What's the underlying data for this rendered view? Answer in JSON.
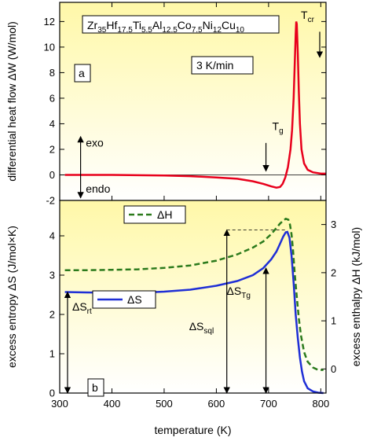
{
  "chart_data": [
    {
      "panel": "a",
      "type": "line",
      "panel_label": "a",
      "title": "Zr35Hf17.5Ti5.5Al12.5Co7.5Ni12Cu10",
      "title_parts": [
        {
          "t": "Zr",
          "sub": "35"
        },
        {
          "t": "Hf",
          "sub": "17.5"
        },
        {
          "t": "Ti",
          "sub": "5.5"
        },
        {
          "t": "Al",
          "sub": "12.5"
        },
        {
          "t": "Co",
          "sub": "7.5"
        },
        {
          "t": "Ni",
          "sub": "12"
        },
        {
          "t": "Cu",
          "sub": "10"
        }
      ],
      "rate_label": "3 K/min",
      "ylabel": "differential heat flow ΔW (W/mol)",
      "xlim": [
        300,
        810
      ],
      "ylim": [
        -2,
        13.5
      ],
      "yticks": [
        -2,
        0,
        2,
        4,
        6,
        8,
        10,
        12
      ],
      "series": [
        {
          "color": "#e8001c",
          "x": [
            310,
            400,
            500,
            550,
            600,
            640,
            670,
            690,
            705,
            715,
            722,
            727,
            732,
            737,
            742,
            745,
            748,
            750,
            752,
            753,
            754,
            756,
            758,
            760,
            763,
            768,
            775,
            785,
            800,
            810
          ],
          "y": [
            0,
            0,
            -0.05,
            -0.1,
            -0.2,
            -0.3,
            -0.5,
            -0.7,
            -0.9,
            -1.0,
            -0.95,
            -0.7,
            -0.2,
            0.6,
            2.0,
            3.5,
            6.0,
            8.5,
            11.0,
            12.0,
            11.8,
            9.5,
            6.5,
            4.0,
            2.0,
            0.9,
            0.4,
            0.2,
            0.1,
            0.1
          ]
        }
      ],
      "annotations": {
        "tg_label": "T",
        "tg_sub": "g",
        "tg_x": 695,
        "tcr_label": "T",
        "tcr_sub": "cr",
        "tcr_x": 798,
        "exo": "exo",
        "endo": "endo"
      }
    },
    {
      "panel": "b",
      "type": "line",
      "panel_label": "b",
      "xlabel": "temperature (K)",
      "ylabel": "excess entropy ΔS (J/mol×K)",
      "ylabel2": "excess enthalpy ΔH (kJ/mol)",
      "xlim": [
        300,
        810
      ],
      "xticks": [
        300,
        400,
        500,
        600,
        700,
        800
      ],
      "ylim": [
        0,
        4.9
      ],
      "yticks": [
        0,
        1,
        2,
        3,
        4
      ],
      "y2lim": [
        -0.5,
        3.5
      ],
      "y2ticks": [
        0,
        1,
        2,
        3
      ],
      "series": [
        {
          "name": "ΔS",
          "axis": "left",
          "color": "#1f2fd6",
          "style": "solid",
          "x": [
            310,
            350,
            400,
            450,
            500,
            550,
            600,
            640,
            670,
            690,
            705,
            715,
            722,
            728,
            733,
            736,
            740,
            744,
            748,
            752,
            756,
            760,
            764,
            768,
            775,
            785,
            795,
            805
          ],
          "y": [
            2.57,
            2.56,
            2.55,
            2.55,
            2.58,
            2.63,
            2.73,
            2.85,
            3.0,
            3.18,
            3.4,
            3.6,
            3.8,
            3.98,
            4.09,
            4.1,
            3.95,
            3.5,
            2.8,
            2.0,
            1.4,
            0.9,
            0.55,
            0.3,
            0.12,
            0.04,
            0.01,
            0.0
          ]
        },
        {
          "name": "ΔH",
          "axis": "right",
          "color": "#2b7a1c",
          "style": "dashed",
          "x": [
            310,
            350,
            400,
            450,
            500,
            550,
            600,
            640,
            670,
            690,
            705,
            715,
            722,
            728,
            733,
            738,
            741,
            744,
            747,
            750,
            754,
            758,
            762,
            768,
            775,
            785,
            795,
            805
          ],
          "y": [
            2.05,
            2.05,
            2.06,
            2.07,
            2.1,
            2.15,
            2.25,
            2.38,
            2.52,
            2.65,
            2.8,
            2.93,
            3.02,
            3.08,
            3.12,
            3.1,
            3.0,
            2.8,
            2.45,
            2.0,
            1.5,
            1.05,
            0.7,
            0.35,
            0.15,
            0.03,
            -0.02,
            -0.02
          ]
        }
      ],
      "annotations": {
        "ds_rt_label": "ΔS",
        "ds_rt_sub": "rt",
        "ds_sql_label": "ΔS",
        "ds_sql_sub": "sql",
        "ds_tg_label": "ΔS",
        "ds_tg_sub": "Tg",
        "ds_rt_x": 315,
        "ds_rt_top": 2.57,
        "ds_sql_x": 620,
        "ds_sql_top": 4.15,
        "ds_tg_x": 695,
        "ds_tg_top": 3.18,
        "dashed_ref_y": 4.15,
        "dashed_ref_x": [
          620,
          733
        ]
      }
    }
  ]
}
